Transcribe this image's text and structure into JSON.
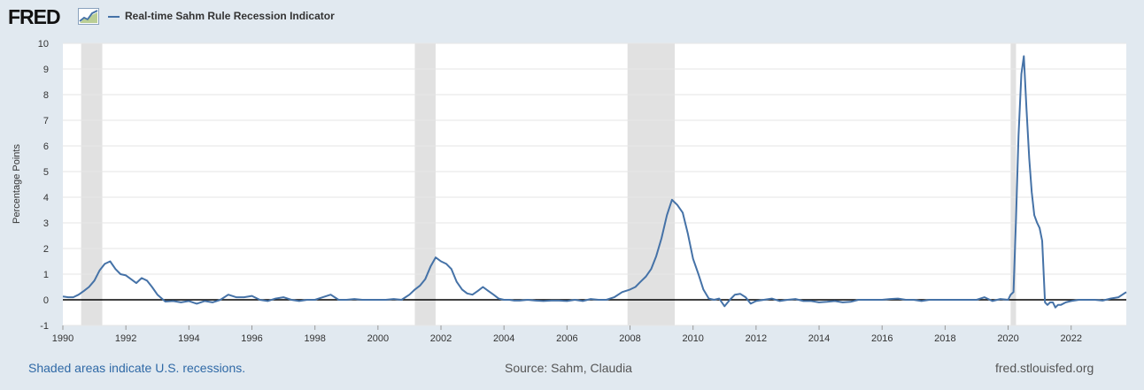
{
  "header": {
    "logo_text": "FRED",
    "logo_mark_icon": "line-graph-icon",
    "series_title": "Real-time Sahm Rule Recession Indicator"
  },
  "footer": {
    "note": "Shaded areas indicate U.S. recessions.",
    "source": "Source: Sahm, Claudia",
    "site": "fred.stlouisfed.org"
  },
  "colors": {
    "line": "#4572a7",
    "recession": "#e1e1e1",
    "background": "#e1e9f0",
    "plot": "#ffffff",
    "zero_line": "#000000"
  },
  "chart_data": {
    "type": "line",
    "title": "",
    "xlabel": "",
    "ylabel": "Percentage Points",
    "xlim": [
      1990.0,
      2023.75
    ],
    "ylim": [
      -1,
      10
    ],
    "yticks": [
      -1,
      0,
      1,
      2,
      3,
      4,
      5,
      6,
      7,
      8,
      9,
      10
    ],
    "xticks": [
      1990,
      1992,
      1994,
      1996,
      1998,
      2000,
      2002,
      2004,
      2006,
      2008,
      2010,
      2012,
      2014,
      2016,
      2018,
      2020,
      2022
    ],
    "grid": true,
    "recessions": [
      [
        1990.58,
        1991.25
      ],
      [
        2001.17,
        2001.83
      ],
      [
        2007.92,
        2009.42
      ],
      [
        2020.08,
        2020.25
      ]
    ],
    "series": [
      {
        "name": "Real-time Sahm Rule Recession Indicator",
        "x": [
          1990.0,
          1990.17,
          1990.33,
          1990.5,
          1990.67,
          1990.83,
          1991.0,
          1991.17,
          1991.33,
          1991.5,
          1991.67,
          1991.83,
          1992.0,
          1992.17,
          1992.33,
          1992.5,
          1992.67,
          1992.83,
          1993.0,
          1993.25,
          1993.5,
          1993.75,
          1994.0,
          1994.25,
          1994.5,
          1994.75,
          1995.0,
          1995.25,
          1995.5,
          1995.75,
          1996.0,
          1996.25,
          1996.5,
          1996.75,
          1997.0,
          1997.25,
          1997.5,
          1997.75,
          1998.0,
          1998.25,
          1998.5,
          1998.75,
          1999.0,
          1999.25,
          1999.5,
          1999.75,
          2000.0,
          2000.25,
          2000.5,
          2000.75,
          2001.0,
          2001.17,
          2001.33,
          2001.5,
          2001.67,
          2001.83,
          2002.0,
          2002.17,
          2002.33,
          2002.5,
          2002.67,
          2002.83,
          2003.0,
          2003.17,
          2003.33,
          2003.5,
          2003.67,
          2003.83,
          2004.0,
          2004.17,
          2004.33,
          2004.5,
          2004.75,
          2005.0,
          2005.25,
          2005.5,
          2005.75,
          2006.0,
          2006.25,
          2006.5,
          2006.75,
          2007.0,
          2007.25,
          2007.5,
          2007.75,
          2008.0,
          2008.17,
          2008.33,
          2008.5,
          2008.67,
          2008.83,
          2009.0,
          2009.17,
          2009.33,
          2009.5,
          2009.67,
          2009.83,
          2010.0,
          2010.17,
          2010.33,
          2010.5,
          2010.67,
          2010.83,
          2011.0,
          2011.17,
          2011.33,
          2011.5,
          2011.67,
          2011.83,
          2012.0,
          2012.25,
          2012.5,
          2012.75,
          2013.0,
          2013.25,
          2013.5,
          2013.75,
          2014.0,
          2014.25,
          2014.5,
          2014.75,
          2015.0,
          2015.25,
          2015.5,
          2015.75,
          2016.0,
          2016.25,
          2016.5,
          2016.75,
          2017.0,
          2017.25,
          2017.5,
          2017.75,
          2018.0,
          2018.25,
          2018.5,
          2018.75,
          2019.0,
          2019.25,
          2019.5,
          2019.75,
          2020.0,
          2020.08,
          2020.17,
          2020.25,
          2020.33,
          2020.42,
          2020.5,
          2020.58,
          2020.67,
          2020.75,
          2020.83,
          2020.92,
          2021.0,
          2021.08,
          2021.17,
          2021.25,
          2021.33,
          2021.42,
          2021.5,
          2021.58,
          2021.67,
          2021.83,
          2022.0,
          2022.25,
          2022.5,
          2022.75,
          2023.0,
          2023.25,
          2023.5,
          2023.75
        ],
        "y": [
          0.13,
          0.1,
          0.1,
          0.2,
          0.35,
          0.5,
          0.75,
          1.15,
          1.4,
          1.5,
          1.2,
          1.0,
          0.95,
          0.8,
          0.65,
          0.85,
          0.75,
          0.5,
          0.2,
          -0.07,
          -0.05,
          -0.1,
          -0.05,
          -0.15,
          -0.05,
          -0.1,
          0.0,
          0.2,
          0.1,
          0.1,
          0.15,
          0.0,
          -0.05,
          0.05,
          0.1,
          0.0,
          -0.05,
          0.0,
          0.0,
          0.1,
          0.2,
          0.0,
          0.0,
          0.03,
          0.0,
          0.0,
          0.0,
          0.0,
          0.03,
          0.0,
          0.2,
          0.4,
          0.55,
          0.8,
          1.3,
          1.65,
          1.5,
          1.4,
          1.2,
          0.7,
          0.4,
          0.25,
          0.2,
          0.35,
          0.5,
          0.35,
          0.2,
          0.05,
          0.0,
          0.0,
          -0.03,
          -0.03,
          0.0,
          -0.03,
          -0.05,
          -0.03,
          -0.03,
          -0.05,
          0.0,
          -0.05,
          0.03,
          0.0,
          0.0,
          0.1,
          0.3,
          0.4,
          0.5,
          0.7,
          0.9,
          1.2,
          1.7,
          2.4,
          3.3,
          3.9,
          3.7,
          3.4,
          2.6,
          1.6,
          1.0,
          0.4,
          0.05,
          0.0,
          0.05,
          -0.25,
          0.0,
          0.2,
          0.23,
          0.1,
          -0.15,
          -0.05,
          0.0,
          0.05,
          -0.05,
          0.0,
          0.03,
          -0.05,
          -0.05,
          -0.1,
          -0.08,
          -0.05,
          -0.1,
          -0.08,
          0.0,
          0.0,
          0.0,
          0.0,
          0.03,
          0.05,
          0.0,
          0.0,
          -0.05,
          0.0,
          0.0,
          0.0,
          0.0,
          0.0,
          0.0,
          0.0,
          0.1,
          -0.05,
          0.03,
          0.0,
          0.2,
          0.3,
          3.2,
          6.4,
          8.8,
          9.5,
          7.5,
          5.5,
          4.2,
          3.3,
          3.0,
          2.8,
          2.3,
          -0.1,
          -0.2,
          -0.1,
          -0.1,
          -0.3,
          -0.2,
          -0.2,
          -0.1,
          -0.05,
          0.0,
          0.0,
          0.0,
          -0.03,
          0.05,
          0.1,
          0.3
        ]
      }
    ]
  }
}
